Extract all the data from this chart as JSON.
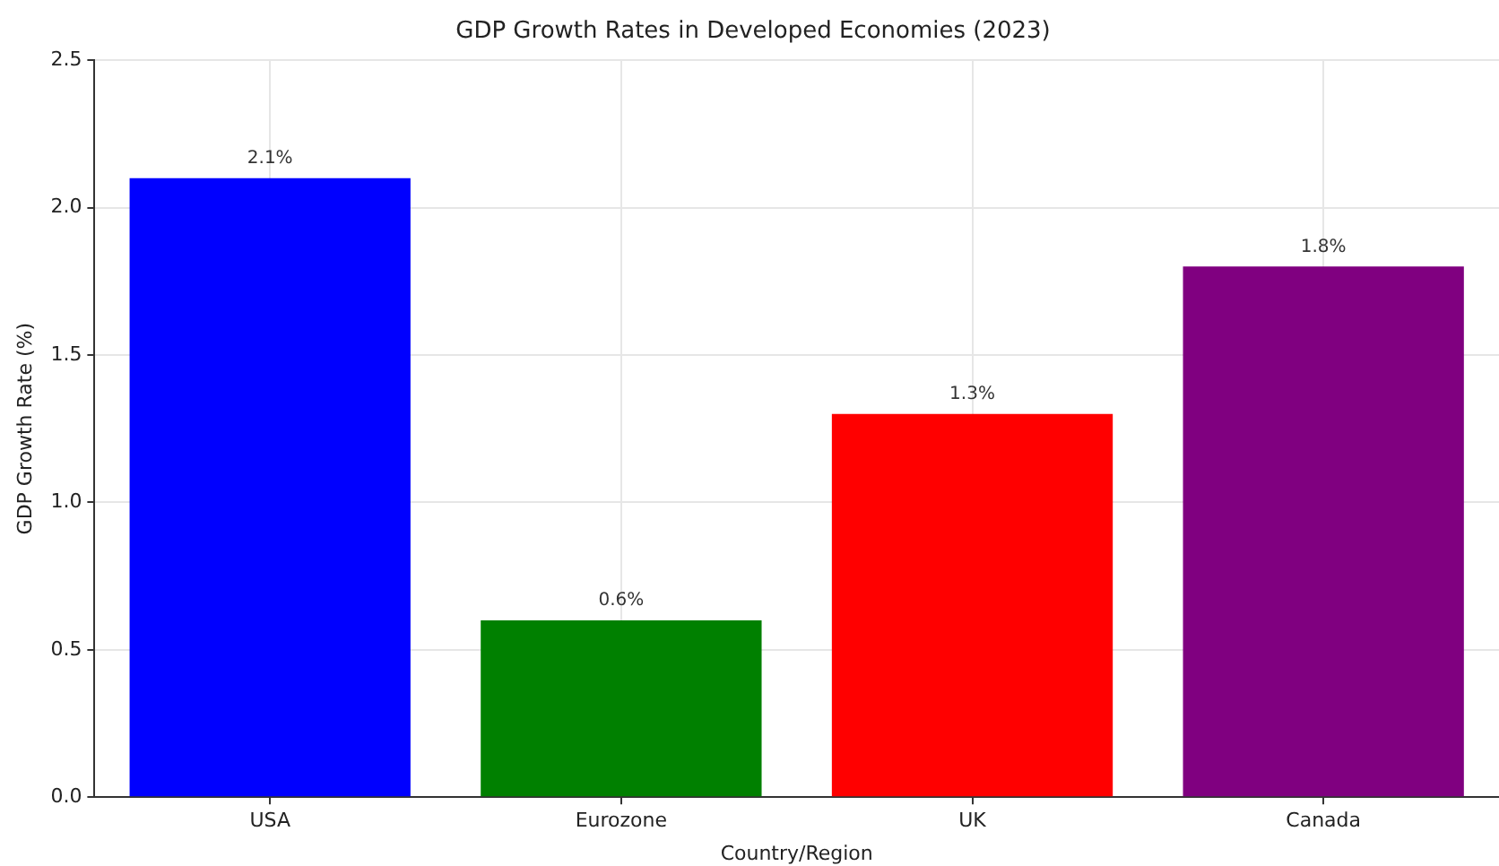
{
  "chart_data": {
    "type": "bar",
    "title": "GDP Growth Rates in Developed Economies (2023)",
    "xlabel": "Country/Region",
    "ylabel": "GDP Growth Rate (%)",
    "categories": [
      "USA",
      "Eurozone",
      "UK",
      "Canada"
    ],
    "values": [
      2.1,
      0.6,
      1.3,
      1.8
    ],
    "colors": [
      "#0000ff",
      "#008000",
      "#ff0000",
      "#800080"
    ],
    "value_labels": [
      "2.1%",
      "0.6%",
      "1.3%",
      "1.8%"
    ],
    "ylim": [
      0,
      2.5
    ],
    "yticks": [
      {
        "value": 0,
        "label": "0.0"
      },
      0.5,
      {
        "value": 1,
        "label": "1.0"
      },
      1.5,
      {
        "value": 2,
        "label": "2.0"
      },
      2.5
    ],
    "grid": true
  }
}
